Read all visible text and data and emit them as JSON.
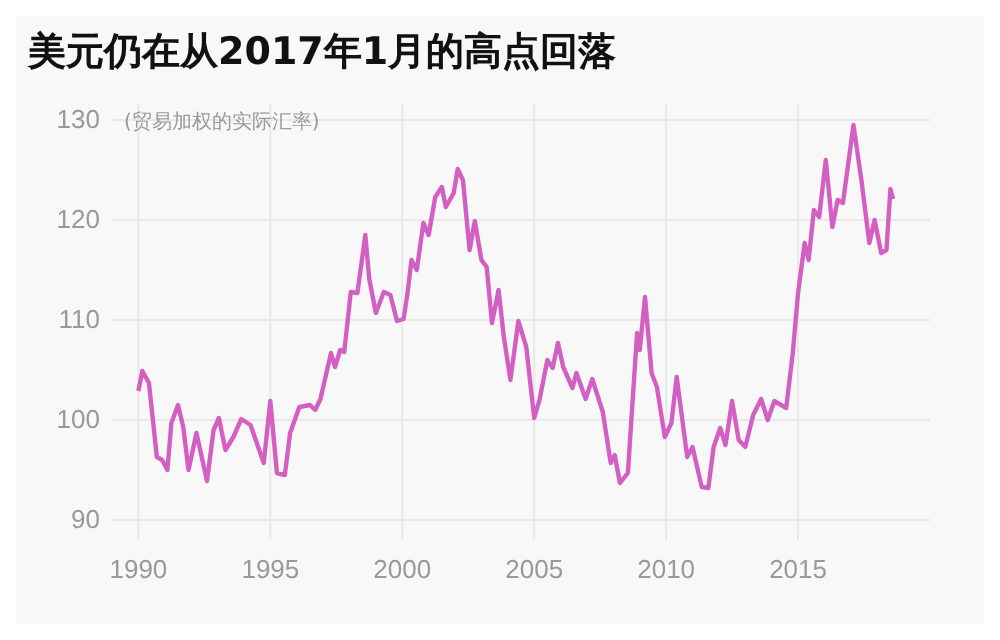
{
  "chart_data": {
    "type": "line",
    "title": "美元仍在从2017年1月的高点回落",
    "subtitle": "(贸易加权的实际汇率)",
    "xlim": [
      1989,
      2020
    ],
    "xticks": [
      1990,
      1995,
      2000,
      2005,
      2010,
      2015
    ],
    "ylim": [
      88,
      130
    ],
    "yticks": [
      90,
      100,
      110,
      120,
      130
    ],
    "grid": true,
    "line_style": "solid",
    "marker": "none",
    "series": [
      {
        "color": "#d45fc2",
        "x": [
          1990.0,
          1990.15,
          1990.4,
          1990.7,
          1990.9,
          1991.1,
          1991.25,
          1991.5,
          1991.7,
          1991.9,
          1992.2,
          1992.6,
          1992.85,
          1993.05,
          1993.3,
          1993.6,
          1993.9,
          1994.25,
          1994.75,
          1995.0,
          1995.25,
          1995.55,
          1995.75,
          1996.1,
          1996.5,
          1996.7,
          1996.9,
          1997.3,
          1997.45,
          1997.65,
          1997.8,
          1998.05,
          1998.3,
          1998.6,
          1998.75,
          1999.0,
          1999.3,
          1999.55,
          1999.8,
          2000.05,
          2000.2,
          2000.35,
          2000.55,
          2000.8,
          2001.0,
          2001.25,
          2001.5,
          2001.65,
          2001.95,
          2002.1,
          2002.3,
          2002.55,
          2002.75,
          2003.0,
          2003.2,
          2003.4,
          2003.65,
          2003.85,
          2004.1,
          2004.4,
          2004.7,
          2005.0,
          2005.2,
          2005.5,
          2005.7,
          2005.9,
          2006.1,
          2006.45,
          2006.6,
          2006.95,
          2007.2,
          2007.6,
          2007.9,
          2008.05,
          2008.25,
          2008.55,
          2008.9,
          2009.0,
          2009.2,
          2009.45,
          2009.65,
          2009.95,
          2010.2,
          2010.4,
          2010.8,
          2011.0,
          2011.35,
          2011.6,
          2011.8,
          2012.05,
          2012.25,
          2012.5,
          2012.75,
          2013.0,
          2013.3,
          2013.6,
          2013.85,
          2014.1,
          2014.55,
          2014.8,
          2015.0,
          2015.25,
          2015.4,
          2015.6,
          2015.8,
          2016.05,
          2016.3,
          2016.5,
          2016.7,
          2017.1,
          2017.4,
          2017.7,
          2017.9,
          2018.15,
          2018.35,
          2018.5,
          2018.6
        ],
        "values": [
          102.9,
          104.9,
          103.7,
          96.3,
          96,
          95,
          99.7,
          101.5,
          99.3,
          95,
          98.7,
          93.9,
          99,
          100.2,
          97,
          98.3,
          100.1,
          99.5,
          95.7,
          101.9,
          94.7,
          94.5,
          98.7,
          101.3,
          101.5,
          101,
          102.1,
          106.7,
          105.3,
          107,
          106.8,
          112.8,
          112.7,
          118.5,
          114.1,
          110.7,
          112.8,
          112.5,
          109.9,
          110.1,
          112.7,
          116,
          115,
          119.7,
          118.5,
          122.3,
          123.3,
          121.3,
          122.7,
          125.1,
          124,
          117,
          119.9,
          116,
          115.3,
          109.7,
          113,
          108.3,
          104,
          109.9,
          107.3,
          100.2,
          102,
          106,
          105.2,
          107.7,
          105.3,
          103.2,
          104.7,
          102.1,
          104.1,
          100.8,
          95.7,
          96.5,
          93.7,
          94.7,
          108.7,
          107,
          112.3,
          104.7,
          103.3,
          98.3,
          99.7,
          104.3,
          96.3,
          97.3,
          93.3,
          93.2,
          97.3,
          99.2,
          97.5,
          101.9,
          98,
          97.3,
          100.5,
          102.1,
          100,
          101.9,
          101.2,
          106.7,
          112.7,
          117.7,
          116,
          121,
          120.3,
          126,
          119.3,
          122,
          121.7,
          129.5,
          124,
          117.7,
          120,
          116.7,
          117,
          123.1,
          122.1
        ]
      }
    ]
  }
}
